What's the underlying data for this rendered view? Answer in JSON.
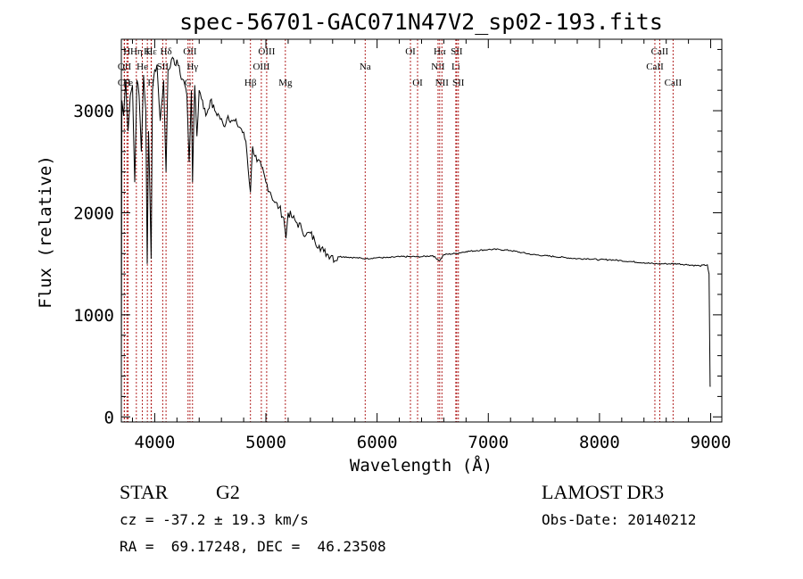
{
  "chart_data": {
    "type": "line",
    "title": "spec-56701-GAC071N47V2_sp02-193.fits",
    "xlabel": "Wavelength (Å)",
    "ylabel": "Flux (relative)",
    "xlim": [
      3700,
      9100
    ],
    "ylim": [
      -50,
      3700
    ],
    "x_ticks": [
      4000,
      5000,
      6000,
      7000,
      8000,
      9000
    ],
    "x_tick_labels": [
      "4000",
      "5000",
      "6000",
      "7000",
      "8000",
      "9000"
    ],
    "y_ticks": [
      0,
      1000,
      2000,
      3000
    ],
    "y_tick_labels": [
      "0",
      "1000",
      "2000",
      "3000"
    ],
    "line_color": "#000000",
    "marker_color": "#b22222",
    "series": [
      {
        "name": "spectrum",
        "x": [
          3700,
          3705,
          3720,
          3740,
          3760,
          3780,
          3800,
          3820,
          3840,
          3860,
          3880,
          3900,
          3920,
          3933,
          3945,
          3968,
          3980,
          4000,
          4020,
          4050,
          4080,
          4102,
          4120,
          4150,
          4180,
          4200,
          4230,
          4260,
          4290,
          4310,
          4330,
          4340,
          4360,
          4380,
          4400,
          4430,
          4460,
          4500,
          4540,
          4580,
          4620,
          4660,
          4700,
          4740,
          4780,
          4820,
          4861,
          4880,
          4920,
          4960,
          5000,
          5040,
          5080,
          5120,
          5160,
          5180,
          5200,
          5240,
          5280,
          5320,
          5360,
          5400,
          5440,
          5480,
          5520,
          5560,
          5600,
          5620,
          5650,
          5700,
          5800,
          5900,
          6000,
          6100,
          6200,
          6300,
          6400,
          6500,
          6563,
          6600,
          6700,
          6800,
          6900,
          7000,
          7100,
          7200,
          7300,
          7400,
          7500,
          7600,
          7700,
          7800,
          7900,
          8000,
          8100,
          8200,
          8300,
          8400,
          8500,
          8600,
          8700,
          8800,
          8900,
          8970,
          8985,
          8995,
          9000
        ],
        "y": [
          300,
          3100,
          2950,
          3300,
          2800,
          3150,
          3250,
          2300,
          3300,
          3150,
          2600,
          3350,
          3000,
          1500,
          2800,
          1550,
          3200,
          3400,
          3450,
          2900,
          3300,
          2400,
          3400,
          3500,
          3450,
          3500,
          3350,
          3300,
          3150,
          2500,
          3200,
          2300,
          3250,
          2750,
          3200,
          3100,
          2950,
          3100,
          3000,
          2950,
          2850,
          2950,
          2900,
          2870,
          2820,
          2700,
          2200,
          2650,
          2500,
          2450,
          2300,
          2200,
          2100,
          2050,
          1950,
          1750,
          2000,
          1950,
          1900,
          1850,
          1780,
          1800,
          1720,
          1680,
          1620,
          1590,
          1580,
          1530,
          1570,
          1570,
          1560,
          1550,
          1560,
          1560,
          1570,
          1570,
          1570,
          1580,
          1530,
          1590,
          1600,
          1620,
          1630,
          1640,
          1640,
          1630,
          1610,
          1590,
          1580,
          1570,
          1560,
          1550,
          1550,
          1540,
          1540,
          1530,
          1520,
          1510,
          1500,
          1500,
          1500,
          1490,
          1480,
          1490,
          1400,
          300,
          300
        ]
      }
    ],
    "line_markers": [
      {
        "name": "CII",
        "x": 3726,
        "row": 2
      },
      {
        "name": "OII",
        "x": 3728,
        "row": 1
      },
      {
        "name": "H",
        "x": 3750,
        "row": 0
      },
      {
        "name": "Fe",
        "x": 3760,
        "row": 2
      },
      {
        "name": "Hη",
        "x": 3835,
        "row": 0
      },
      {
        "name": "He",
        "x": 3889,
        "row": 1
      },
      {
        "name": "K",
        "x": 3934,
        "row": 0
      },
      {
        "name": "H",
        "x": 3968,
        "row": 2
      },
      {
        "name": "Hε",
        "x": 3970,
        "row": 0
      },
      {
        "name": "SII",
        "x": 4072,
        "row": 1
      },
      {
        "name": "Hδ",
        "x": 4102,
        "row": 0
      },
      {
        "name": "G",
        "x": 4300,
        "row": 2
      },
      {
        "name": "OII",
        "x": 4317,
        "row": 0
      },
      {
        "name": "Hγ",
        "x": 4340,
        "row": 1
      },
      {
        "name": "Hβ",
        "x": 4861,
        "row": 2
      },
      {
        "name": "OIII",
        "x": 4959,
        "row": 1
      },
      {
        "name": "OIII",
        "x": 5007,
        "row": 0
      },
      {
        "name": "Mg",
        "x": 5175,
        "row": 2
      },
      {
        "name": "Na",
        "x": 5893,
        "row": 1
      },
      {
        "name": "OI",
        "x": 6300,
        "row": 0
      },
      {
        "name": "OI",
        "x": 6364,
        "row": 2
      },
      {
        "name": "NII",
        "x": 6548,
        "row": 1
      },
      {
        "name": "Hα",
        "x": 6563,
        "row": 0
      },
      {
        "name": "NII",
        "x": 6583,
        "row": 2
      },
      {
        "name": "Li",
        "x": 6708,
        "row": 1
      },
      {
        "name": "SII",
        "x": 6716,
        "row": 0
      },
      {
        "name": "SII",
        "x": 6731,
        "row": 2
      },
      {
        "name": "CaII",
        "x": 8498,
        "row": 1
      },
      {
        "name": "CaII",
        "x": 8542,
        "row": 0
      },
      {
        "name": "CaII",
        "x": 8662,
        "row": 2
      }
    ]
  },
  "info": {
    "object_class": "STAR",
    "subclass": "G2",
    "survey": "LAMOST DR3",
    "redshift": "cz = -37.2 ± 19.3 km/s",
    "obs_date": "Obs-Date: 20140212",
    "coords": "RA =  69.17248, DEC =  46.23508"
  }
}
